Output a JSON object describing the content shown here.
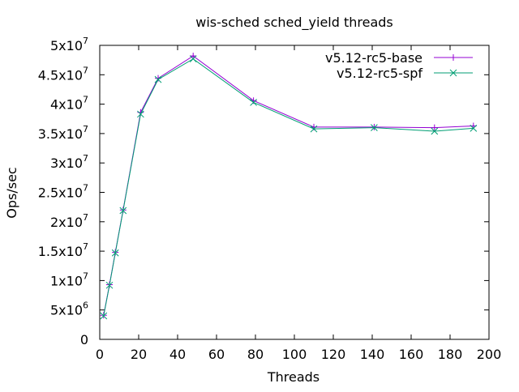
{
  "chart_data": {
    "type": "line",
    "title": "wis-sched sched_yield threads",
    "xlabel": "Threads",
    "ylabel": "Ops/sec",
    "xlim": [
      0,
      200
    ],
    "ylim": [
      0,
      50000000
    ],
    "grid": false,
    "legend_position": "top-right",
    "x_ticks": [
      {
        "value": 0,
        "label": "0"
      },
      {
        "value": 20,
        "label": "20"
      },
      {
        "value": 40,
        "label": "40"
      },
      {
        "value": 60,
        "label": "60"
      },
      {
        "value": 80,
        "label": "80"
      },
      {
        "value": 100,
        "label": "100"
      },
      {
        "value": 120,
        "label": "120"
      },
      {
        "value": 140,
        "label": "140"
      },
      {
        "value": 160,
        "label": "160"
      },
      {
        "value": 180,
        "label": "180"
      },
      {
        "value": 200,
        "label": "200"
      }
    ],
    "y_ticks": [
      {
        "value": 0,
        "mantissa": "0",
        "exp": ""
      },
      {
        "value": 5000000,
        "mantissa": "5x10",
        "exp": "6"
      },
      {
        "value": 10000000,
        "mantissa": "1x10",
        "exp": "7"
      },
      {
        "value": 15000000,
        "mantissa": "1.5x10",
        "exp": "7"
      },
      {
        "value": 20000000,
        "mantissa": "2x10",
        "exp": "7"
      },
      {
        "value": 25000000,
        "mantissa": "2.5x10",
        "exp": "7"
      },
      {
        "value": 30000000,
        "mantissa": "3x10",
        "exp": "7"
      },
      {
        "value": 35000000,
        "mantissa": "3.5x10",
        "exp": "7"
      },
      {
        "value": 40000000,
        "mantissa": "4x10",
        "exp": "7"
      },
      {
        "value": 45000000,
        "mantissa": "4.5x10",
        "exp": "7"
      },
      {
        "value": 50000000,
        "mantissa": "5x10",
        "exp": "7"
      }
    ],
    "series": [
      {
        "name": "v5.12-rc5-base",
        "color": "#9400d3",
        "marker": "plus",
        "x": [
          2,
          5,
          8,
          12,
          21,
          30,
          48,
          79,
          110,
          141,
          172,
          192
        ],
        "y": [
          4100000,
          9300000,
          14800000,
          22000000,
          38600000,
          44400000,
          48200000,
          40600000,
          36100000,
          36100000,
          36000000,
          36300000
        ]
      },
      {
        "name": "v5.12-rc5-spf",
        "color": "#009e73",
        "marker": "x",
        "x": [
          2,
          5,
          8,
          12,
          21,
          30,
          48,
          79,
          110,
          141,
          172,
          192
        ],
        "y": [
          4000000,
          9200000,
          14700000,
          21900000,
          38300000,
          44200000,
          47700000,
          40300000,
          35800000,
          36000000,
          35400000,
          35900000
        ]
      }
    ]
  }
}
